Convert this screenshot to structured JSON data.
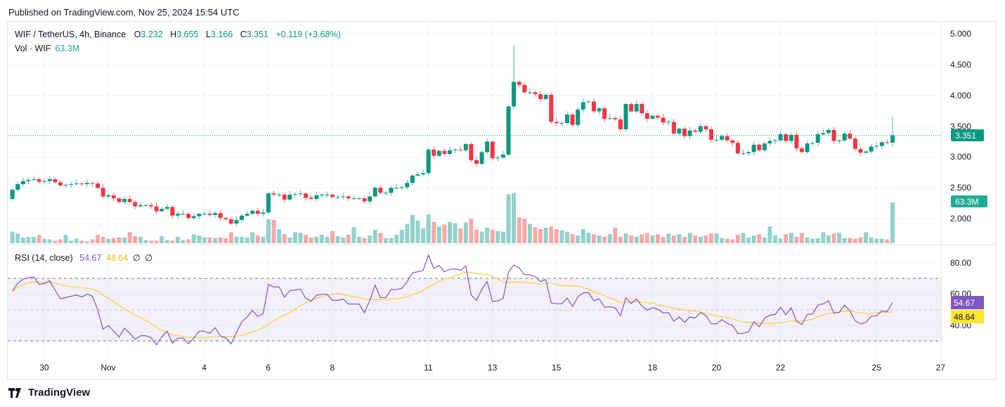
{
  "header": {
    "published": "Published on TradingView.com, Nov 25, 2024 15:54 UTC"
  },
  "legend": {
    "symbol": "WIF / TetherUS, 4h, Binance",
    "o_label": "O",
    "o": "3.232",
    "h_label": "H",
    "h": "3.655",
    "l_label": "L",
    "l": "3.166",
    "c_label": "C",
    "c": "3.351",
    "change": "+0.119 (+3.68%)",
    "vol_label": "Vol · WIF",
    "vol": "63.3M",
    "rsi_label": "RSI (14, close)",
    "rsi": "54.67",
    "rsi_ma": "48.64",
    "extra1": "∅",
    "extra2": "∅"
  },
  "price_axis": {
    "ticks": [
      "5.000",
      "4.500",
      "4.000",
      "3.500",
      "3.000",
      "2.500",
      "2.000"
    ],
    "last_price": "3.351",
    "last_volume": "63.3M"
  },
  "rsi_axis": {
    "ticks": [
      "80.00",
      "60.00",
      "40.00"
    ],
    "rsi_tag": "54.67",
    "ma_tag": "48.64"
  },
  "time_axis": {
    "ticks": [
      "30",
      "Nov",
      "4",
      "6",
      "8",
      "11",
      "13",
      "15",
      "18",
      "20",
      "22",
      "25",
      "27"
    ]
  },
  "footer": {
    "brand": "TradingView"
  },
  "colors": {
    "up": "#089981",
    "down": "#f23645",
    "vol_up": "#92d2cc",
    "vol_down": "#f7a9a7",
    "rsi": "#7e57c2",
    "rsi_ma": "#f5d038"
  },
  "chart_data": {
    "type": "candlestick",
    "interval": "4h",
    "price_range": [
      1.6,
      5.1
    ],
    "rsi_bands": [
      30,
      70
    ],
    "last": {
      "open": 3.232,
      "high": 3.655,
      "low": 3.166,
      "close": 3.351
    },
    "spike_high": {
      "index": 94,
      "high": 4.82
    },
    "closes": [
      2.47,
      2.56,
      2.61,
      2.63,
      2.64,
      2.6,
      2.61,
      2.64,
      2.59,
      2.54,
      2.55,
      2.56,
      2.57,
      2.56,
      2.58,
      2.57,
      2.5,
      2.36,
      2.38,
      2.33,
      2.27,
      2.32,
      2.27,
      2.2,
      2.22,
      2.22,
      2.2,
      2.12,
      2.16,
      2.19,
      2.05,
      2.08,
      2.08,
      2.01,
      2.04,
      2.08,
      2.08,
      2.06,
      2.09,
      2.01,
      1.99,
      1.92,
      1.98,
      2.05,
      2.08,
      2.13,
      2.08,
      2.1,
      2.41,
      2.39,
      2.39,
      2.31,
      2.39,
      2.4,
      2.41,
      2.34,
      2.32,
      2.38,
      2.39,
      2.39,
      2.35,
      2.35,
      2.36,
      2.33,
      2.33,
      2.33,
      2.28,
      2.36,
      2.5,
      2.42,
      2.42,
      2.5,
      2.5,
      2.51,
      2.58,
      2.7,
      2.72,
      2.74,
      3.12,
      3.02,
      3.1,
      3.05,
      3.11,
      3.12,
      3.11,
      3.21,
      2.95,
      2.89,
      3.08,
      3.25,
      2.98,
      2.99,
      3.04,
      3.82,
      4.22,
      4.17,
      4.05,
      4.05,
      4.02,
      3.94,
      4.01,
      3.57,
      3.55,
      3.55,
      3.69,
      3.52,
      3.77,
      3.89,
      3.9,
      3.74,
      3.79,
      3.62,
      3.63,
      3.61,
      3.45,
      3.86,
      3.74,
      3.86,
      3.71,
      3.62,
      3.67,
      3.64,
      3.56,
      3.57,
      3.38,
      3.46,
      3.34,
      3.43,
      3.41,
      3.5,
      3.45,
      3.28,
      3.28,
      3.34,
      3.27,
      3.23,
      3.06,
      3.06,
      3.08,
      3.2,
      3.11,
      3.22,
      3.26,
      3.27,
      3.37,
      3.26,
      3.36,
      3.14,
      3.08,
      3.22,
      3.23,
      3.37,
      3.39,
      3.44,
      3.26,
      3.27,
      3.38,
      3.3,
      3.13,
      3.07,
      3.09,
      3.17,
      3.18,
      3.24,
      3.232,
      3.351
    ],
    "volumes_m": [
      18,
      15,
      9,
      10,
      10,
      13,
      7,
      6,
      4,
      6,
      13,
      4,
      7,
      4,
      3,
      6,
      13,
      10,
      7,
      8,
      9,
      9,
      17,
      11,
      10,
      5,
      4,
      4,
      11,
      5,
      4,
      10,
      5,
      6,
      14,
      12,
      9,
      9,
      8,
      9,
      8,
      17,
      10,
      10,
      9,
      17,
      12,
      10,
      37,
      36,
      22,
      14,
      9,
      17,
      16,
      13,
      9,
      10,
      13,
      10,
      19,
      11,
      9,
      13,
      25,
      10,
      8,
      12,
      21,
      16,
      8,
      8,
      13,
      21,
      30,
      44,
      35,
      23,
      45,
      33,
      26,
      29,
      33,
      31,
      23,
      32,
      38,
      21,
      18,
      24,
      21,
      19,
      18,
      76,
      78,
      40,
      38,
      30,
      25,
      22,
      24,
      26,
      22,
      20,
      18,
      14,
      12,
      22,
      16,
      14,
      12,
      10,
      14,
      24,
      10,
      15,
      12,
      10,
      14,
      16,
      12,
      14,
      10,
      15,
      12,
      14,
      10,
      16,
      12,
      10,
      12,
      15,
      15,
      8,
      7,
      6,
      13,
      16,
      9,
      12,
      14,
      9,
      26,
      12,
      7,
      14,
      16,
      10,
      16,
      9,
      7,
      8,
      17,
      12,
      15,
      16,
      8,
      8,
      7,
      9,
      17,
      9,
      7,
      7,
      6,
      63.3
    ]
  }
}
